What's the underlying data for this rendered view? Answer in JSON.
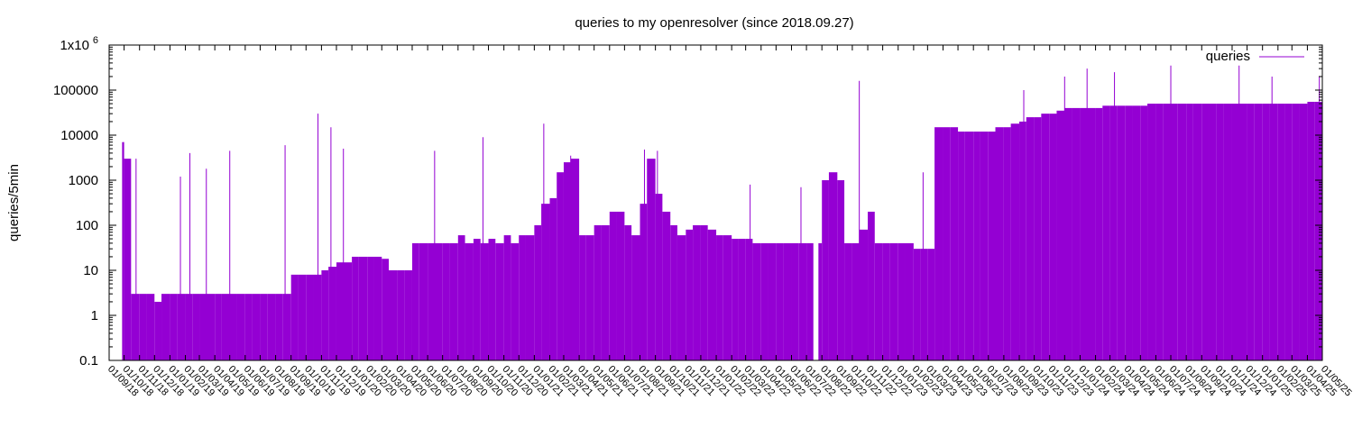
{
  "chart_data": {
    "type": "bar",
    "title": "queries to my openresolver (since 2018.09.27)",
    "xlabel": "",
    "ylabel": "queries/5min",
    "y_scale": "log",
    "ylim": [
      0.1,
      1000000
    ],
    "y_ticks": [
      0.1,
      1,
      10,
      100,
      1000,
      10000,
      100000,
      1000000
    ],
    "y_tick_labels": [
      "0.1",
      "1",
      "10",
      "100",
      "1000",
      "10000",
      "100000",
      "1x10"
    ],
    "y_top_tick_exponent": "6",
    "xlim": [
      "2018-09-01",
      "2025-05-01"
    ],
    "legend": {
      "position": "top-right",
      "entries": [
        "queries"
      ]
    },
    "grid": false,
    "series_color": "#9400d3",
    "x_tick_labels": [
      "01/09/18",
      "01/10/18",
      "01/11/18",
      "01/12/18",
      "01/01/19",
      "01/02/19",
      "01/03/19",
      "01/04/19",
      "01/05/19",
      "01/06/19",
      "01/07/19",
      "01/08/19",
      "01/09/19",
      "01/10/19",
      "01/11/19",
      "01/12/19",
      "01/01/20",
      "01/02/20",
      "01/03/20",
      "01/04/20",
      "01/05/20",
      "01/06/20",
      "01/07/20",
      "01/08/20",
      "01/09/20",
      "01/10/20",
      "01/11/20",
      "01/12/20",
      "01/01/21",
      "01/02/21",
      "01/03/21",
      "01/04/21",
      "01/05/21",
      "01/06/21",
      "01/07/21",
      "01/08/21",
      "01/09/21",
      "01/10/21",
      "01/11/21",
      "01/12/21",
      "01/01/22",
      "01/02/22",
      "01/03/22",
      "01/04/22",
      "01/05/22",
      "01/06/22",
      "01/07/22",
      "01/08/22",
      "01/09/22",
      "01/10/22",
      "01/11/22",
      "01/12/22",
      "01/01/23",
      "01/02/23",
      "01/03/23",
      "01/04/23",
      "01/05/23",
      "01/06/23",
      "01/07/23",
      "01/08/23",
      "01/09/23",
      "01/10/23",
      "01/11/23",
      "01/12/23",
      "01/01/24",
      "01/02/24",
      "01/03/24",
      "01/04/24",
      "01/05/24",
      "01/06/24",
      "01/07/24",
      "01/08/24",
      "01/09/24",
      "01/10/24",
      "01/11/24",
      "01/12/24",
      "01/01/25",
      "01/02/25",
      "01/03/25",
      "01/04/25",
      "01/05/25"
    ],
    "series": [
      {
        "name": "queries",
        "x": [
          "2018-09-27",
          "2018-10-01",
          "2018-10-15",
          "2018-11-01",
          "2018-11-15",
          "2018-12-01",
          "2018-12-15",
          "2019-01-01",
          "2019-01-15",
          "2019-02-01",
          "2019-02-15",
          "2019-03-01",
          "2019-03-15",
          "2019-04-01",
          "2019-04-15",
          "2019-05-01",
          "2019-05-15",
          "2019-06-01",
          "2019-06-15",
          "2019-07-01",
          "2019-07-15",
          "2019-08-01",
          "2019-08-15",
          "2019-09-01",
          "2019-09-15",
          "2019-10-01",
          "2019-10-15",
          "2019-11-01",
          "2019-11-15",
          "2019-12-01",
          "2019-12-15",
          "2020-01-01",
          "2020-01-15",
          "2020-02-01",
          "2020-02-15",
          "2020-03-01",
          "2020-03-15",
          "2020-04-01",
          "2020-04-15",
          "2020-05-01",
          "2020-05-15",
          "2020-06-01",
          "2020-06-15",
          "2020-07-01",
          "2020-07-15",
          "2020-08-01",
          "2020-08-15",
          "2020-09-01",
          "2020-09-15",
          "2020-10-01",
          "2020-10-15",
          "2020-11-01",
          "2020-11-15",
          "2020-12-01",
          "2020-12-15",
          "2021-01-01",
          "2021-01-15",
          "2021-02-01",
          "2021-02-15",
          "2021-03-01",
          "2021-03-15",
          "2021-04-01",
          "2021-04-15",
          "2021-05-01",
          "2021-05-15",
          "2021-06-01",
          "2021-06-15",
          "2021-07-01",
          "2021-07-15",
          "2021-08-01",
          "2021-08-15",
          "2021-09-01",
          "2021-09-15",
          "2021-10-01",
          "2021-10-15",
          "2021-11-01",
          "2021-11-15",
          "2021-12-01",
          "2021-12-15",
          "2022-01-01",
          "2022-01-15",
          "2022-02-01",
          "2022-02-15",
          "2022-03-01",
          "2022-03-15",
          "2022-04-01",
          "2022-04-15",
          "2022-05-01",
          "2022-05-15",
          "2022-06-01",
          "2022-06-15",
          "2022-07-01",
          "2022-07-15",
          "2022-08-01",
          "2022-08-15",
          "2022-09-01",
          "2022-09-15",
          "2022-10-01",
          "2022-10-15",
          "2022-11-01",
          "2022-11-15",
          "2022-12-01",
          "2022-12-15",
          "2023-01-01",
          "2023-01-15",
          "2023-02-01",
          "2023-02-15",
          "2023-03-01",
          "2023-03-15",
          "2023-04-01",
          "2023-04-15",
          "2023-05-01",
          "2023-05-15",
          "2023-06-01",
          "2023-06-15",
          "2023-07-01",
          "2023-07-15",
          "2023-08-01",
          "2023-08-15",
          "2023-09-01",
          "2023-09-15",
          "2023-10-01",
          "2023-10-15",
          "2023-11-01",
          "2023-11-15",
          "2023-12-01",
          "2023-12-15",
          "2024-01-01",
          "2024-01-15",
          "2024-02-01",
          "2024-02-15",
          "2024-03-01",
          "2024-03-15",
          "2024-04-01",
          "2024-04-15",
          "2024-05-01",
          "2024-05-15",
          "2024-06-01",
          "2024-06-15",
          "2024-07-01",
          "2024-07-15",
          "2024-08-01",
          "2024-08-15",
          "2024-09-01",
          "2024-09-15",
          "2024-10-01",
          "2024-10-15",
          "2024-11-01",
          "2024-11-15",
          "2024-12-01",
          "2024-12-15",
          "2025-01-01",
          "2025-01-15",
          "2025-02-01",
          "2025-02-15",
          "2025-03-01",
          "2025-03-15",
          "2025-04-01",
          "2025-04-15",
          "2025-05-01"
        ],
        "values": [
          7000,
          3000,
          3,
          3,
          3,
          2,
          3,
          3,
          3,
          3,
          3,
          3,
          3,
          3,
          3,
          3,
          3,
          3,
          3,
          3,
          3,
          3,
          3,
          8,
          8,
          8,
          8,
          10,
          12,
          15,
          15,
          20,
          20,
          20,
          20,
          18,
          10,
          10,
          10,
          40,
          40,
          40,
          40,
          40,
          40,
          60,
          40,
          50,
          40,
          50,
          40,
          60,
          40,
          60,
          60,
          100,
          300,
          400,
          1500,
          2500,
          3000,
          60,
          60,
          100,
          100,
          200,
          200,
          100,
          60,
          300,
          3000,
          500,
          200,
          100,
          60,
          80,
          100,
          100,
          80,
          60,
          60,
          50,
          50,
          50,
          40,
          40,
          40,
          40,
          40,
          40,
          40,
          40,
          40,
          1000,
          1500,
          1000,
          40,
          40,
          80,
          200,
          40,
          40,
          40,
          40,
          40,
          30,
          30,
          30,
          15000,
          15000,
          15000,
          12000,
          12000,
          12000,
          12000,
          12000,
          15000,
          15000,
          18000,
          20000,
          25000,
          25000,
          30000,
          30000,
          35000,
          40000,
          40000,
          40000,
          40000,
          40000,
          45000,
          45000,
          45000,
          45000,
          45000,
          45000,
          50000,
          50000,
          50000,
          50000,
          50000,
          50000,
          50000,
          50000,
          50000,
          50000,
          50000,
          50000,
          50000,
          50000,
          50000,
          50000,
          50000,
          50000,
          50000,
          50000,
          50000,
          55000,
          55000,
          60000
        ]
      }
    ],
    "spikes": [
      {
        "x": "2018-09-30",
        "value": 7000
      },
      {
        "x": "2018-10-25",
        "value": 3000
      },
      {
        "x": "2019-01-22",
        "value": 1200
      },
      {
        "x": "2019-02-10",
        "value": 4000
      },
      {
        "x": "2019-03-15",
        "value": 1800
      },
      {
        "x": "2019-05-01",
        "value": 4500
      },
      {
        "x": "2019-08-20",
        "value": 6000
      },
      {
        "x": "2019-10-25",
        "value": 30000
      },
      {
        "x": "2019-11-20",
        "value": 15000
      },
      {
        "x": "2019-12-15",
        "value": 5000
      },
      {
        "x": "2020-06-15",
        "value": 4500
      },
      {
        "x": "2020-09-20",
        "value": 9000
      },
      {
        "x": "2021-01-20",
        "value": 18000
      },
      {
        "x": "2021-03-15",
        "value": 3500
      },
      {
        "x": "2021-08-10",
        "value": 4800
      },
      {
        "x": "2021-09-05",
        "value": 4500
      },
      {
        "x": "2022-03-10",
        "value": 800
      },
      {
        "x": "2022-06-20",
        "value": 700
      },
      {
        "x": "2022-10-15",
        "value": 160000
      },
      {
        "x": "2023-02-20",
        "value": 1500
      },
      {
        "x": "2023-09-10",
        "value": 100000
      },
      {
        "x": "2023-12-01",
        "value": 200000
      },
      {
        "x": "2024-01-15",
        "value": 300000
      },
      {
        "x": "2024-03-10",
        "value": 250000
      },
      {
        "x": "2024-07-01",
        "value": 350000
      },
      {
        "x": "2024-11-15",
        "value": 350000
      },
      {
        "x": "2025-01-20",
        "value": 200000
      },
      {
        "x": "2025-04-25",
        "value": 200000
      }
    ],
    "gaps": [
      {
        "from": "2022-07-15",
        "to": "2022-07-25"
      }
    ]
  }
}
